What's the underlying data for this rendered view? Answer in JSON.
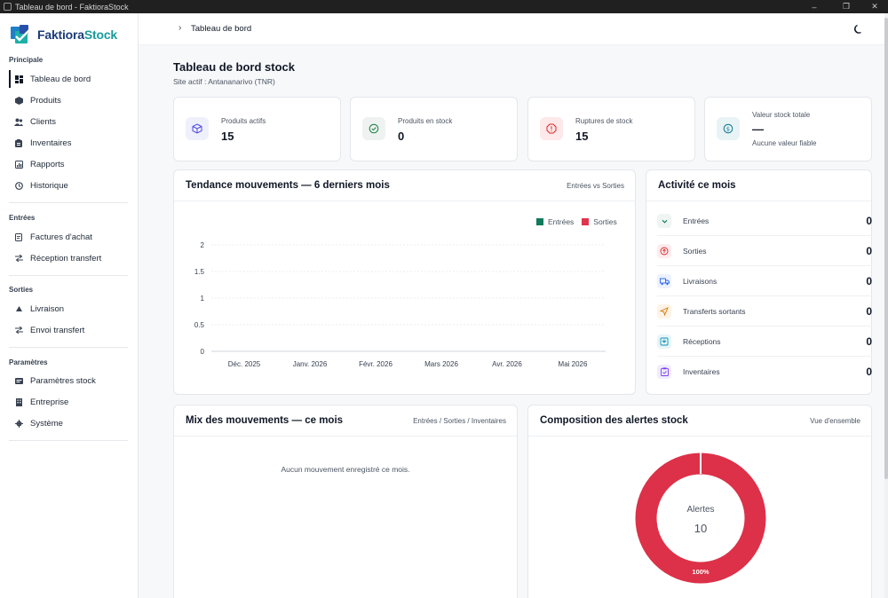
{
  "window": {
    "title": "Tableau de bord - FaktioraStock",
    "controls": [
      "minimize",
      "restore",
      "close"
    ]
  },
  "sidebar": {
    "logo": {
      "part1": "Faktiora",
      "part2": "Stock"
    },
    "sections": [
      {
        "title": "Principale",
        "items": [
          {
            "label": "Tableau de bord",
            "icon": "dashboard-icon",
            "active": true
          },
          {
            "label": "Produits",
            "icon": "box-icon"
          },
          {
            "label": "Clients",
            "icon": "users-icon"
          },
          {
            "label": "Inventaires",
            "icon": "clipboard-icon"
          },
          {
            "label": "Rapports",
            "icon": "report-icon"
          },
          {
            "label": "Historique",
            "icon": "history-icon"
          }
        ]
      },
      {
        "title": "Entrées",
        "items": [
          {
            "label": "Factures d'achat",
            "icon": "invoice-icon"
          },
          {
            "label": "Réception transfert",
            "icon": "transfer-icon"
          }
        ]
      },
      {
        "title": "Sorties",
        "items": [
          {
            "label": "Livraison",
            "icon": "delivery-icon"
          },
          {
            "label": "Envoi transfert",
            "icon": "transfer-icon"
          }
        ]
      },
      {
        "title": "Paramètres",
        "items": [
          {
            "label": "Paramètres stock",
            "icon": "settings-icon"
          },
          {
            "label": "Entreprise",
            "icon": "building-icon"
          },
          {
            "label": "Système",
            "icon": "gear-icon"
          }
        ]
      }
    ]
  },
  "topbar": {
    "breadcrumb": "Tableau de bord",
    "theme_icon": "moon-icon"
  },
  "page": {
    "title": "Tableau de bord stock",
    "subtitle": "Site actif : Antananarivo (TNR)"
  },
  "kpis": [
    {
      "label": "Produits actifs",
      "value": "15",
      "icon": "cube-icon",
      "color": "#4f46e5",
      "bg": "#eef0fb"
    },
    {
      "label": "Produits en stock",
      "value": "0",
      "icon": "check-circle-icon",
      "color": "#15803d",
      "bg": "#eef2f0"
    },
    {
      "label": "Ruptures de stock",
      "value": "15",
      "icon": "alert-octagon-icon",
      "color": "#dc2626",
      "bg": "#fde8ea"
    },
    {
      "label": "Valeur stock totale",
      "value": "—",
      "note": "Aucune valeur fiable",
      "icon": "currency-icon",
      "color": "#0e7490",
      "bg": "#e8f3f5"
    }
  ],
  "trend": {
    "title": "Tendance mouvements — 6 derniers mois",
    "hint": "Entrées vs Sorties"
  },
  "chart_data": {
    "type": "bar",
    "categories": [
      "Déc. 2025",
      "Janv. 2026",
      "Févr. 2026",
      "Mars 2026",
      "Avr. 2026",
      "Mai 2026"
    ],
    "series": [
      {
        "name": "Entrées",
        "values": [
          0,
          0,
          0,
          0,
          0,
          0
        ],
        "color": "#0f7a5c"
      },
      {
        "name": "Sorties",
        "values": [
          0,
          0,
          0,
          0,
          0,
          0
        ],
        "color": "#e0354e"
      }
    ],
    "yticks": [
      "0",
      "0.5",
      "1",
      "1.5",
      "2"
    ],
    "ylim": [
      0,
      2
    ],
    "legend_position": "top-right",
    "grid": true
  },
  "activity": {
    "title": "Activité ce mois",
    "rows": [
      {
        "label": "Entrées",
        "value": "0",
        "icon": "chevron-down-icon",
        "color": "#0f7a5c",
        "bg": "#eef5f2"
      },
      {
        "label": "Sorties",
        "value": "0",
        "icon": "arrow-up-circle-icon",
        "color": "#dc2626",
        "bg": "#fdecee"
      },
      {
        "label": "Livraisons",
        "value": "0",
        "icon": "truck-icon",
        "color": "#2563eb",
        "bg": "#ecf1fd"
      },
      {
        "label": "Transferts sortants",
        "value": "0",
        "icon": "send-icon",
        "color": "#d97706",
        "bg": "#fdf3e6"
      },
      {
        "label": "Réceptions",
        "value": "0",
        "icon": "inbox-icon",
        "color": "#0891b2",
        "bg": "#e7f5f8"
      },
      {
        "label": "Inventaires",
        "value": "0",
        "icon": "clipboard-check-icon",
        "color": "#7c3aed",
        "bg": "#f1ecfd"
      }
    ]
  },
  "mix": {
    "title": "Mix des mouvements — ce mois",
    "hint": "Entrées / Sorties / Inventaires",
    "empty": "Aucun mouvement enregistré ce mois."
  },
  "alerts": {
    "title": "Composition des alertes stock",
    "hint": "Vue d'ensemble",
    "center_label": "Alertes",
    "center_value": "10",
    "slice_label": "100%",
    "slice_color": "#dc3148",
    "slice_percent": 100
  }
}
